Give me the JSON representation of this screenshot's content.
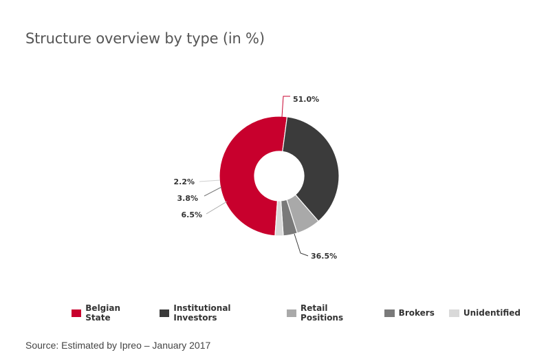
{
  "chart_data": {
    "type": "donut",
    "title": "Structure overview by type (in %)",
    "slices": [
      {
        "name": "Belgian State",
        "value": 51.0,
        "label": "51.0%",
        "color": "#c8002d"
      },
      {
        "name": "Institutional Investors",
        "value": 36.5,
        "label": "36.5%",
        "color": "#3b3b3b"
      },
      {
        "name": "Retail Positions",
        "value": 6.5,
        "label": "6.5%",
        "color": "#a9a9a9"
      },
      {
        "name": "Brokers",
        "value": 3.8,
        "label": "3.8%",
        "color": "#7a7a7a"
      },
      {
        "name": "Unidentified",
        "value": 2.2,
        "label": "2.2%",
        "color": "#d9d9d9"
      }
    ],
    "legend_position": "bottom"
  },
  "footer": {
    "source": "Source: Estimated by Ipreo – January 2017"
  }
}
